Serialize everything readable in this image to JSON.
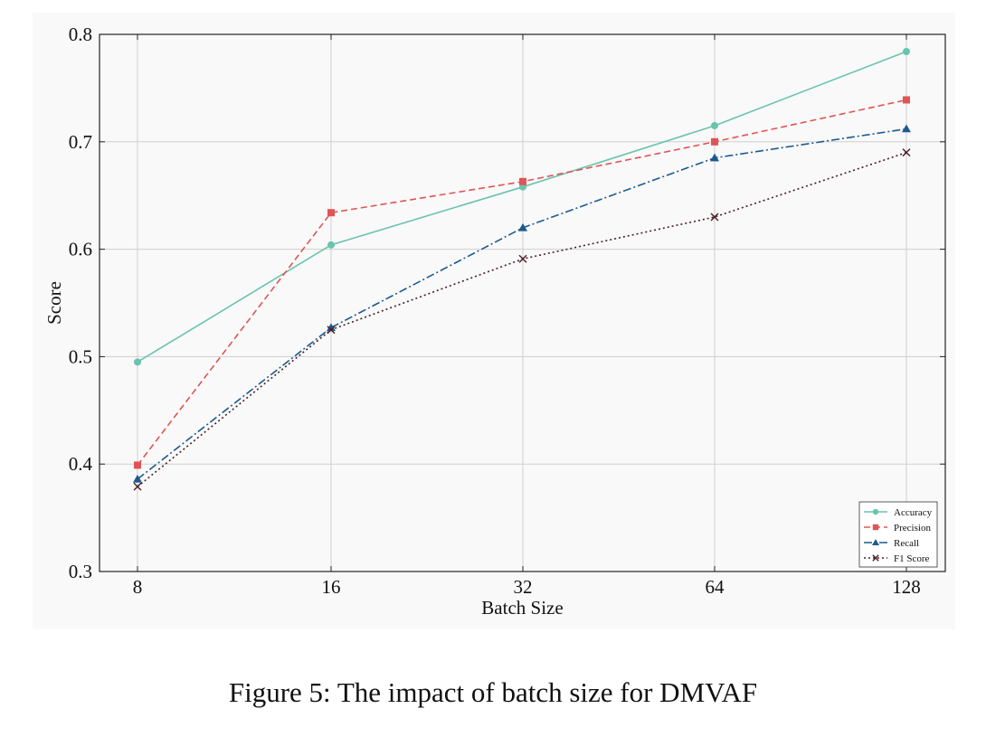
{
  "figure_caption": "Figure 5: The impact of batch size for DMVAF",
  "chart_data": {
    "type": "line",
    "title": "",
    "xlabel": "Batch Size",
    "ylabel": "Score",
    "categories": [
      "8",
      "16",
      "32",
      "64",
      "128"
    ],
    "ylim": [
      0.3,
      0.8
    ],
    "yticks": [
      "0.3",
      "0.4",
      "0.5",
      "0.6",
      "0.7",
      "0.8"
    ],
    "grid": true,
    "legend_position": "bottom-right",
    "series": [
      {
        "name": "Accuracy",
        "values": [
          0.495,
          0.604,
          0.658,
          0.715,
          0.784
        ],
        "color": "#6ac3ae",
        "marker": "circle",
        "dash": "solid"
      },
      {
        "name": "Precision",
        "values": [
          0.399,
          0.634,
          0.663,
          0.7,
          0.739
        ],
        "color": "#e05456",
        "marker": "square",
        "dash": "dashed"
      },
      {
        "name": "Recall",
        "values": [
          0.386,
          0.527,
          0.62,
          0.685,
          0.712
        ],
        "color": "#1c5a8f",
        "marker": "triangle",
        "dash": "dashdot"
      },
      {
        "name": "F1 Score",
        "values": [
          0.379,
          0.525,
          0.591,
          0.63,
          0.69
        ],
        "color": "#4a1e24",
        "marker": "x",
        "dash": "dotted"
      }
    ]
  }
}
